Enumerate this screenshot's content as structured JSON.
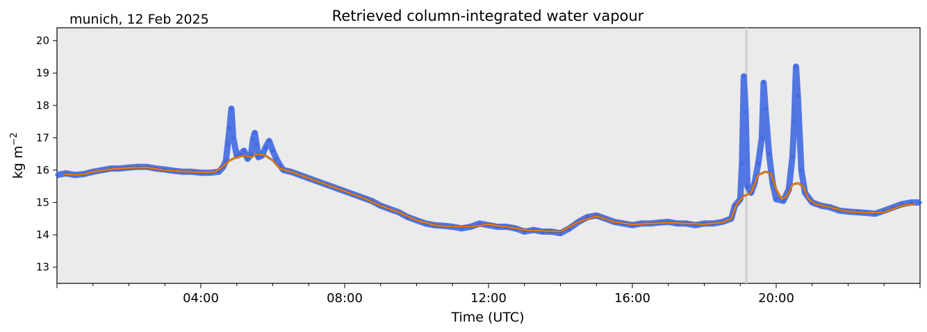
{
  "header": {
    "location_date": "munich, 12 Feb 2025"
  },
  "chart_data": {
    "type": "scatter",
    "title": "Retrieved column-integrated water vapour",
    "xlabel": "Time (UTC)",
    "ylabel": "kg m",
    "ylabel_sup": "−2",
    "xlim_hours": [
      0,
      24
    ],
    "ylim": [
      12.5,
      20.4
    ],
    "yticks": [
      13,
      14,
      15,
      16,
      17,
      18,
      19,
      20
    ],
    "xticks": [
      {
        "hour": 4,
        "label": "04:00"
      },
      {
        "hour": 8,
        "label": "08:00"
      },
      {
        "hour": 12,
        "label": "12:00"
      },
      {
        "hour": 16,
        "label": "16:00"
      },
      {
        "hour": 20,
        "label": "20:00"
      }
    ],
    "vertical_marker_hour": 19.17,
    "grid": false,
    "colors": {
      "background": "#ebebeb",
      "points": "#4169e1",
      "smoothed_line": "#ff8c1a",
      "marker": "#cfcfcf"
    },
    "series": [
      {
        "kind": "scatter",
        "points": [
          [
            0.0,
            15.85
          ],
          [
            0.25,
            15.9
          ],
          [
            0.5,
            15.85
          ],
          [
            0.75,
            15.88
          ],
          [
            1.0,
            15.95
          ],
          [
            1.25,
            16.0
          ],
          [
            1.5,
            16.05
          ],
          [
            1.75,
            16.05
          ],
          [
            2.0,
            16.08
          ],
          [
            2.25,
            16.1
          ],
          [
            2.5,
            16.1
          ],
          [
            2.75,
            16.05
          ],
          [
            3.0,
            16.02
          ],
          [
            3.25,
            15.98
          ],
          [
            3.5,
            15.95
          ],
          [
            3.75,
            15.95
          ],
          [
            4.0,
            15.92
          ],
          [
            4.25,
            15.92
          ],
          [
            4.5,
            15.95
          ],
          [
            4.62,
            16.1
          ],
          [
            4.7,
            16.3
          ],
          [
            4.75,
            16.8
          ],
          [
            4.8,
            17.3
          ],
          [
            4.85,
            17.9
          ],
          [
            4.9,
            17.0
          ],
          [
            5.0,
            16.45
          ],
          [
            5.1,
            16.5
          ],
          [
            5.2,
            16.6
          ],
          [
            5.3,
            16.35
          ],
          [
            5.4,
            16.5
          ],
          [
            5.45,
            16.95
          ],
          [
            5.5,
            17.15
          ],
          [
            5.55,
            16.8
          ],
          [
            5.6,
            16.4
          ],
          [
            5.7,
            16.45
          ],
          [
            5.8,
            16.7
          ],
          [
            5.9,
            16.9
          ],
          [
            6.0,
            16.6
          ],
          [
            6.1,
            16.35
          ],
          [
            6.2,
            16.15
          ],
          [
            6.3,
            16.0
          ],
          [
            6.5,
            15.95
          ],
          [
            6.75,
            15.85
          ],
          [
            7.0,
            15.75
          ],
          [
            7.25,
            15.65
          ],
          [
            7.5,
            15.55
          ],
          [
            7.75,
            15.45
          ],
          [
            8.0,
            15.35
          ],
          [
            8.25,
            15.25
          ],
          [
            8.5,
            15.15
          ],
          [
            8.75,
            15.05
          ],
          [
            9.0,
            14.9
          ],
          [
            9.25,
            14.8
          ],
          [
            9.5,
            14.7
          ],
          [
            9.75,
            14.55
          ],
          [
            10.0,
            14.45
          ],
          [
            10.25,
            14.35
          ],
          [
            10.5,
            14.3
          ],
          [
            10.75,
            14.28
          ],
          [
            11.0,
            14.25
          ],
          [
            11.25,
            14.2
          ],
          [
            11.5,
            14.25
          ],
          [
            11.75,
            14.35
          ],
          [
            12.0,
            14.3
          ],
          [
            12.25,
            14.25
          ],
          [
            12.5,
            14.25
          ],
          [
            12.75,
            14.2
          ],
          [
            13.0,
            14.1
          ],
          [
            13.25,
            14.15
          ],
          [
            13.5,
            14.1
          ],
          [
            13.75,
            14.1
          ],
          [
            14.0,
            14.05
          ],
          [
            14.25,
            14.2
          ],
          [
            14.5,
            14.4
          ],
          [
            14.75,
            14.55
          ],
          [
            15.0,
            14.6
          ],
          [
            15.25,
            14.5
          ],
          [
            15.5,
            14.4
          ],
          [
            15.75,
            14.35
          ],
          [
            16.0,
            14.3
          ],
          [
            16.25,
            14.35
          ],
          [
            16.5,
            14.35
          ],
          [
            16.75,
            14.38
          ],
          [
            17.0,
            14.4
          ],
          [
            17.25,
            14.35
          ],
          [
            17.5,
            14.35
          ],
          [
            17.75,
            14.3
          ],
          [
            18.0,
            14.35
          ],
          [
            18.25,
            14.35
          ],
          [
            18.5,
            14.4
          ],
          [
            18.75,
            14.5
          ],
          [
            18.85,
            14.9
          ],
          [
            19.0,
            15.1
          ],
          [
            19.05,
            16.2
          ],
          [
            19.1,
            18.9
          ],
          [
            19.15,
            17.8
          ],
          [
            19.2,
            15.5
          ],
          [
            19.3,
            15.3
          ],
          [
            19.4,
            15.6
          ],
          [
            19.5,
            16.2
          ],
          [
            19.6,
            17.0
          ],
          [
            19.65,
            18.7
          ],
          [
            19.7,
            17.9
          ],
          [
            19.8,
            16.5
          ],
          [
            19.9,
            15.6
          ],
          [
            20.0,
            15.1
          ],
          [
            20.2,
            15.05
          ],
          [
            20.35,
            15.4
          ],
          [
            20.45,
            16.4
          ],
          [
            20.5,
            17.5
          ],
          [
            20.55,
            19.2
          ],
          [
            20.6,
            18.3
          ],
          [
            20.7,
            16.0
          ],
          [
            20.8,
            15.3
          ],
          [
            21.0,
            15.0
          ],
          [
            21.25,
            14.9
          ],
          [
            21.5,
            14.85
          ],
          [
            21.75,
            14.75
          ],
          [
            22.0,
            14.72
          ],
          [
            22.25,
            14.7
          ],
          [
            22.5,
            14.68
          ],
          [
            22.75,
            14.65
          ],
          [
            23.0,
            14.75
          ],
          [
            23.25,
            14.85
          ],
          [
            23.5,
            14.95
          ],
          [
            23.75,
            15.0
          ],
          [
            24.0,
            15.0
          ]
        ]
      },
      {
        "kind": "smoothed_line",
        "points": [
          [
            0.2,
            15.88
          ],
          [
            0.5,
            15.85
          ],
          [
            0.75,
            15.87
          ],
          [
            1.0,
            15.95
          ],
          [
            1.5,
            16.03
          ],
          [
            2.0,
            16.07
          ],
          [
            2.5,
            16.08
          ],
          [
            3.0,
            16.0
          ],
          [
            3.5,
            15.96
          ],
          [
            4.0,
            15.93
          ],
          [
            4.4,
            15.95
          ],
          [
            4.6,
            16.1
          ],
          [
            4.8,
            16.3
          ],
          [
            5.0,
            16.4
          ],
          [
            5.2,
            16.45
          ],
          [
            5.4,
            16.4
          ],
          [
            5.6,
            16.5
          ],
          [
            5.8,
            16.45
          ],
          [
            6.0,
            16.3
          ],
          [
            6.2,
            16.05
          ],
          [
            6.5,
            15.95
          ],
          [
            7.0,
            15.75
          ],
          [
            7.5,
            15.55
          ],
          [
            8.0,
            15.35
          ],
          [
            8.5,
            15.15
          ],
          [
            9.0,
            14.9
          ],
          [
            9.5,
            14.7
          ],
          [
            10.0,
            14.45
          ],
          [
            10.5,
            14.3
          ],
          [
            11.0,
            14.25
          ],
          [
            11.5,
            14.25
          ],
          [
            12.0,
            14.32
          ],
          [
            12.5,
            14.25
          ],
          [
            13.0,
            14.15
          ],
          [
            13.5,
            14.12
          ],
          [
            14.0,
            14.1
          ],
          [
            14.5,
            14.4
          ],
          [
            15.0,
            14.58
          ],
          [
            15.5,
            14.4
          ],
          [
            16.0,
            14.32
          ],
          [
            16.5,
            14.35
          ],
          [
            17.0,
            14.38
          ],
          [
            17.5,
            14.35
          ],
          [
            18.0,
            14.33
          ],
          [
            18.5,
            14.38
          ],
          [
            18.75,
            14.5
          ],
          [
            18.9,
            14.95
          ],
          [
            19.1,
            15.2
          ],
          [
            19.3,
            15.3
          ],
          [
            19.5,
            15.85
          ],
          [
            19.7,
            15.95
          ],
          [
            19.85,
            15.9
          ],
          [
            20.0,
            15.4
          ],
          [
            20.15,
            15.1
          ],
          [
            20.3,
            15.2
          ],
          [
            20.45,
            15.55
          ],
          [
            20.6,
            15.6
          ],
          [
            20.75,
            15.5
          ],
          [
            20.9,
            15.1
          ],
          [
            21.1,
            14.95
          ],
          [
            21.5,
            14.85
          ],
          [
            22.0,
            14.72
          ],
          [
            22.5,
            14.68
          ],
          [
            23.0,
            14.7
          ],
          [
            23.5,
            14.9
          ],
          [
            23.85,
            14.95
          ]
        ]
      }
    ]
  }
}
